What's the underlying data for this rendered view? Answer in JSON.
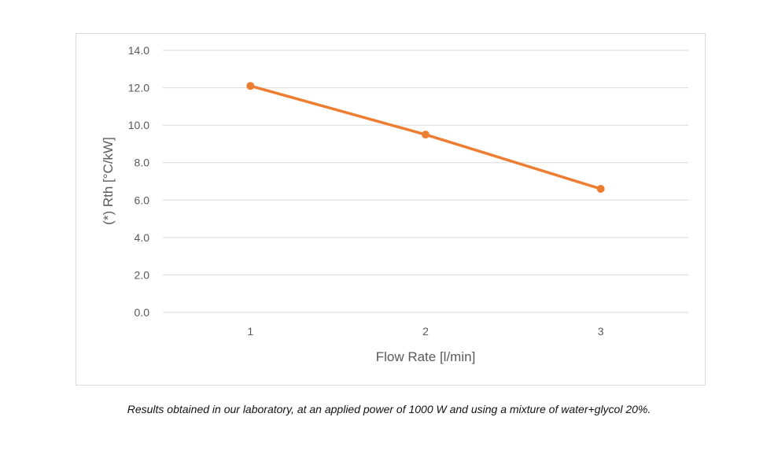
{
  "chart_data": {
    "type": "line",
    "categories": [
      "1",
      "2",
      "3"
    ],
    "series": [
      {
        "values": [
          12.1,
          9.5,
          6.6
        ],
        "color": "#ED7D31"
      }
    ],
    "xlabel": "Flow Rate [l/min]",
    "ylabel": "(*) Rth [°C/kW]",
    "ylim": [
      0,
      14
    ],
    "yticks": [
      "0.0",
      "2.0",
      "4.0",
      "6.0",
      "8.0",
      "10.0",
      "12.0",
      "14.0"
    ],
    "grid": true,
    "legend": "none"
  },
  "caption": "Results obtained in our laboratory, at an applied power of 1000 W and using a mixture of water+glycol 20%."
}
